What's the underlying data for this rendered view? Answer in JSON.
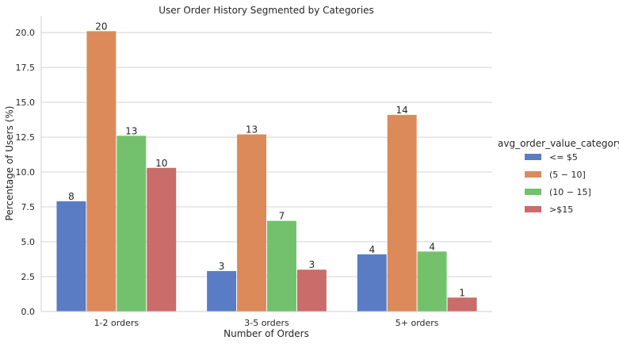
{
  "chart_data": {
    "type": "bar",
    "title": "User Order History Segmented by Categories",
    "xlabel": "Number of Orders",
    "ylabel": "Percentage  of Users (%)",
    "categories": [
      "1-2 orders",
      "3-5 orders",
      "5+ orders"
    ],
    "ylim": [
      0,
      21.2
    ],
    "yticks": [
      "0.0",
      "2.5",
      "5.0",
      "7.5",
      "10.0",
      "12.5",
      "15.0",
      "17.5",
      "20.0"
    ],
    "grid": true,
    "legend_title": "avg_order_value_category",
    "legend_position": "right",
    "series": [
      {
        "name": "<= $5",
        "color": "#5a7cc4",
        "values": [
          7.9,
          2.9,
          4.1
        ],
        "labels": [
          "8",
          "3",
          "4"
        ]
      },
      {
        "name": "(5 − 10]",
        "color": "#dc8a5a",
        "values": [
          20.1,
          12.7,
          14.1
        ],
        "labels": [
          "20",
          "13",
          "14"
        ]
      },
      {
        "name": "(10 − 15]",
        "color": "#73c16c",
        "values": [
          12.6,
          6.5,
          4.3
        ],
        "labels": [
          "13",
          "7",
          "4"
        ]
      },
      {
        "name": ">$15",
        "color": "#c96c6a",
        "values": [
          10.3,
          3.0,
          1.0
        ],
        "labels": [
          "10",
          "3",
          "1"
        ]
      }
    ]
  }
}
